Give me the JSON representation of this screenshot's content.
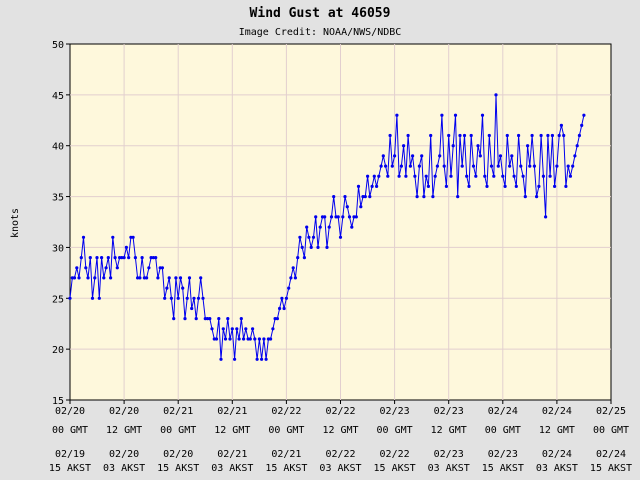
{
  "chart_data": {
    "type": "line",
    "title": "Wind Gust at 46059",
    "subtitle": "Image Credit: NOAA/NWS/NDBC",
    "ylabel": "knots",
    "ylim": [
      15,
      50
    ],
    "yticks": [
      15,
      20,
      25,
      30,
      35,
      40,
      45,
      50
    ],
    "x_tick_labels_gmt": [
      [
        "02/20",
        "00 GMT"
      ],
      [
        "02/20",
        "12 GMT"
      ],
      [
        "02/21",
        "00 GMT"
      ],
      [
        "02/21",
        "12 GMT"
      ],
      [
        "02/22",
        "00 GMT"
      ],
      [
        "02/22",
        "12 GMT"
      ],
      [
        "02/23",
        "00 GMT"
      ],
      [
        "02/23",
        "12 GMT"
      ],
      [
        "02/24",
        "00 GMT"
      ],
      [
        "02/24",
        "12 GMT"
      ],
      [
        "02/25",
        "00 GMT"
      ]
    ],
    "x_tick_labels_local": [
      [
        "02/19",
        "15 AKST"
      ],
      [
        "02/20",
        "03 AKST"
      ],
      [
        "02/20",
        "15 AKST"
      ],
      [
        "02/21",
        "03 AKST"
      ],
      [
        "02/21",
        "15 AKST"
      ],
      [
        "02/22",
        "03 AKST"
      ],
      [
        "02/22",
        "15 AKST"
      ],
      [
        "02/23",
        "03 AKST"
      ],
      [
        "02/23",
        "15 AKST"
      ],
      [
        "02/24",
        "03 AKST"
      ],
      [
        "02/24",
        "15 AKST"
      ]
    ],
    "grid": true,
    "colors": {
      "line": "#0000ee",
      "plot_bg": "#fef8dc",
      "page_bg": "#e2e2e2",
      "grid": "#e2cfcf"
    },
    "series": [
      {
        "x_hours_since_02_20_00_GMT": [
          0.0,
          0.5,
          1.0,
          1.5,
          2.0,
          2.5,
          3.0,
          3.5,
          4.0,
          4.5,
          5.0,
          5.5,
          6.0,
          6.5,
          7.0,
          7.5,
          8.0,
          8.5,
          9.0,
          9.5,
          10.0,
          10.5,
          11.0,
          11.5,
          12.0,
          12.5,
          13.0,
          13.5,
          14.0,
          14.5,
          15.0,
          15.5,
          16.0,
          16.5,
          17.0,
          17.5,
          18.0,
          18.5,
          19.0,
          19.5,
          20.0,
          20.5,
          21.0,
          21.5,
          22.0,
          22.5,
          23.0,
          23.5,
          24.0,
          24.5,
          25.0,
          25.5,
          26.0,
          26.5,
          27.0,
          27.5,
          28.0,
          28.5,
          29.0,
          29.5,
          30.0,
          30.5,
          31.0,
          31.5,
          32.0,
          32.5,
          33.0,
          33.5,
          34.0,
          34.5,
          35.0,
          35.5,
          36.0,
          36.5,
          37.0,
          37.5,
          38.0,
          38.5,
          39.0,
          39.5,
          40.0,
          40.5,
          41.0,
          41.5,
          42.0,
          42.5,
          43.0,
          43.5,
          44.0,
          44.5,
          45.0,
          45.5,
          46.0,
          46.5,
          47.0,
          47.5,
          48.0,
          48.5,
          49.0,
          49.5,
          50.0,
          50.5,
          51.0,
          51.5,
          52.0,
          52.5,
          53.0,
          53.5,
          54.0,
          54.5,
          55.0,
          55.5,
          56.0,
          56.5,
          57.0,
          57.5,
          58.0,
          58.5,
          59.0,
          59.5,
          60.0,
          60.5,
          61.0,
          61.5,
          62.0,
          62.5,
          63.0,
          63.5,
          64.0,
          64.5,
          65.0,
          65.5,
          66.0,
          66.5,
          67.0,
          67.5,
          68.0,
          68.5,
          69.0,
          69.5,
          70.0,
          70.5,
          71.0,
          71.5,
          72.0,
          72.5,
          73.0,
          73.5,
          74.0,
          74.5,
          75.0,
          75.5,
          76.0,
          76.5,
          77.0,
          77.5,
          78.0,
          78.5,
          79.0,
          79.5,
          80.0,
          80.5,
          81.0,
          81.5,
          82.0,
          82.5,
          83.0,
          83.5,
          84.0,
          84.5,
          85.0,
          85.5,
          86.0,
          86.5,
          87.0,
          87.5,
          88.0,
          88.5,
          89.0,
          89.5,
          90.0,
          90.5,
          91.0,
          91.5,
          92.0,
          92.5,
          93.0,
          93.5,
          94.0,
          94.5,
          95.0,
          95.5,
          96.0,
          96.5,
          97.0,
          97.5,
          98.0,
          98.5,
          99.0,
          99.5,
          100.0,
          100.5,
          101.0,
          101.5,
          102.0,
          102.5,
          103.0,
          103.5,
          104.0,
          104.5,
          105.0,
          105.5,
          106.0,
          106.5,
          107.0,
          107.5,
          108.0,
          108.5,
          109.0,
          109.5,
          110.0,
          110.5,
          111.0,
          111.5,
          112.0,
          112.5,
          113.0,
          113.5,
          114.0
        ],
        "values": [
          25,
          27,
          27,
          28,
          27,
          29,
          31,
          28,
          27,
          29,
          25,
          27,
          29,
          25,
          29,
          27,
          28,
          29,
          27,
          31,
          29,
          28,
          29,
          29,
          29,
          30,
          29,
          31,
          31,
          29,
          27,
          27,
          29,
          27,
          27,
          28,
          29,
          29,
          29,
          27,
          28,
          28,
          25,
          26,
          27,
          25,
          23,
          27,
          25,
          27,
          26,
          23,
          25,
          27,
          24,
          25,
          23,
          25,
          27,
          25,
          23,
          23,
          23,
          22,
          21,
          21,
          23,
          19,
          22,
          21,
          23,
          21,
          22,
          19,
          22,
          21,
          23,
          21,
          22,
          21,
          21,
          22,
          21,
          19,
          21,
          19,
          21,
          19,
          21,
          21,
          22,
          23,
          23,
          24,
          25,
          24,
          25,
          26,
          27,
          28,
          27,
          29,
          31,
          30,
          29,
          32,
          31,
          30,
          31,
          33,
          30,
          32,
          33,
          33,
          30,
          32,
          33,
          35,
          33,
          33,
          31,
          33,
          35,
          34,
          33,
          32,
          33,
          33,
          36,
          34,
          35,
          35,
          37,
          35,
          36,
          37,
          36,
          37,
          38,
          39,
          38,
          37,
          41,
          38,
          39,
          43,
          37,
          38,
          40,
          37,
          41,
          38,
          39,
          37,
          35,
          38,
          39,
          35,
          37,
          36,
          41,
          35,
          37,
          38,
          39,
          43,
          38,
          36,
          41,
          37,
          40,
          43,
          35,
          41,
          38,
          41,
          37,
          36,
          41,
          38,
          37,
          40,
          39,
          43,
          37,
          36,
          41,
          38,
          37,
          45,
          38,
          39,
          37,
          36,
          41,
          38,
          39,
          37,
          36,
          41,
          38,
          37,
          35,
          40,
          38,
          41,
          38,
          35,
          36,
          41,
          37,
          33,
          41,
          37,
          41,
          36,
          38,
          41,
          42,
          41,
          36,
          38,
          37,
          38,
          39,
          40,
          41,
          42,
          43
        ]
      }
    ]
  }
}
